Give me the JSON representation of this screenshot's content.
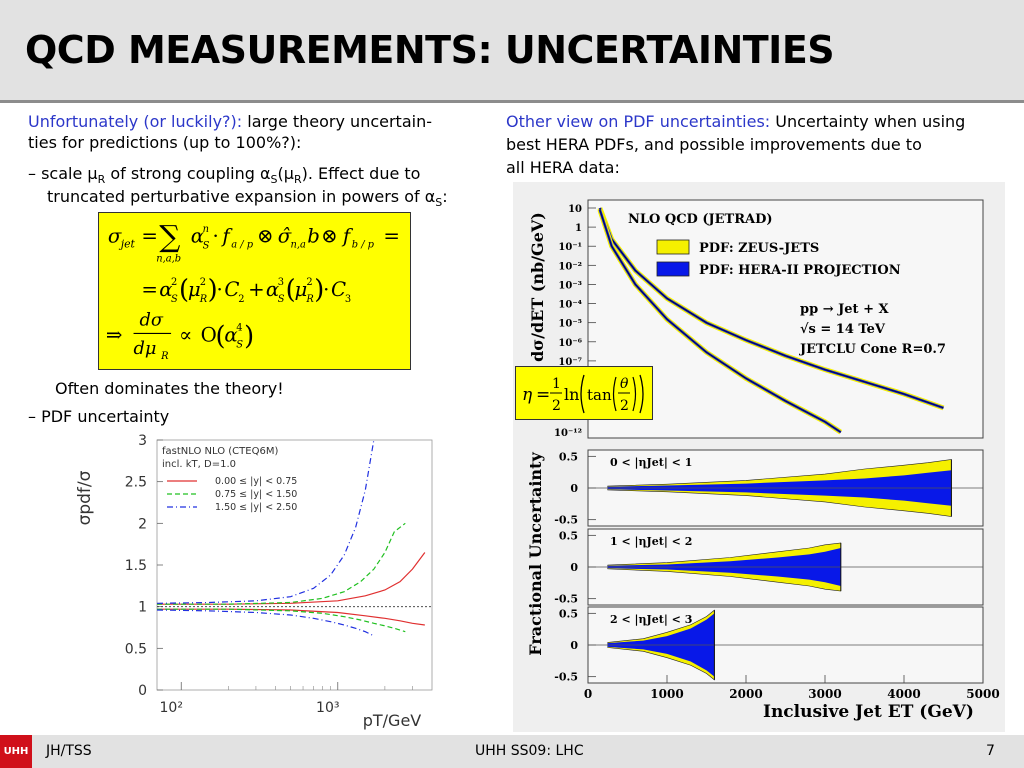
{
  "slide": {
    "title": "QCD MEASUREMENTS: UNCERTAINTIES",
    "left": {
      "intro_highlight": "Unfortunately (or luckily?):",
      "intro_rest": " large theory uncertain-",
      "intro_line2": "ties for predictions (up to 100%?):",
      "scale_a": "– scale μ",
      "scale_sub1": "R",
      "scale_b": " of strong coupling α",
      "scale_sub2": "S",
      "scale_c": "(μ",
      "scale_sub3": "R",
      "scale_d": "). Effect due to",
      "trunc_a": "truncated perturbative expansion in powers of α",
      "trunc_sub": "S",
      "trunc_b": ":",
      "dominates": "Often dominates the theory!",
      "pdf_unc": "– PDF uncertainty"
    },
    "right": {
      "intro_highlight": "Other view on PDF uncertainties:",
      "intro_rest": " Uncertainty when using",
      "line2": "best HERA PDFs, and possible improvements due to",
      "line3": "all HERA data:"
    },
    "footer": {
      "logo": "UHH",
      "left": "JH/TSS",
      "center": "UHH SS09: LHC",
      "page": "7"
    }
  },
  "formula": {
    "sigma": "σ",
    "jet": "jet",
    "eq": "=",
    "sum": "∑",
    "sum_sub": "n,a,b",
    "alpha": "α",
    "n": "n",
    "S": "S",
    "dot": "·",
    "f": "f",
    "a_p": "a / p",
    "otimes": "⊗",
    "sigma_hat": "σ̂",
    "nab": "n,a",
    "b": "b",
    "b_p": "b / p",
    "two": "2",
    "three": "3",
    "mu": "μ",
    "R": "R",
    "C2": "C",
    "plus": "+",
    "implies": "⇒",
    "d_sigma": "dσ",
    "d_mu": "dμ",
    "propto": "∝",
    "O": "O",
    "four": "4",
    "lparen": "(",
    "rparen": ")"
  },
  "eta_formula": {
    "eta": "η",
    "eq": "=",
    "one": "1",
    "two": "2",
    "ln": "ln",
    "tan": "tan",
    "theta": "θ"
  },
  "chart_data": [
    {
      "type": "line",
      "ylabel": "σpdf/σ",
      "xlabel": "pT/GeV",
      "xscale": "log",
      "xlim": [
        70,
        4000
      ],
      "ylim": [
        0,
        3
      ],
      "x_ticks": [
        "10²",
        "10³"
      ],
      "y_ticks": [
        "0",
        "0.5",
        "1",
        "1.5",
        "2",
        "2.5",
        "3"
      ],
      "annotation_lines": [
        "fastNLO NLO (CTEQ6M)",
        "incl. kT, D=1.0"
      ],
      "legend_position": "top-left",
      "reference_line": 1,
      "series": [
        {
          "name": "0.00 ≤ |y| < 0.75",
          "color": "#e03030",
          "style": "solid",
          "x": [
            70,
            200,
            500,
            1000,
            1500,
            2000,
            2500,
            3000,
            3600
          ],
          "upper": [
            1.03,
            1.03,
            1.04,
            1.07,
            1.13,
            1.2,
            1.3,
            1.45,
            1.65
          ],
          "lower": [
            0.97,
            0.97,
            0.96,
            0.93,
            0.89,
            0.86,
            0.83,
            0.8,
            0.78
          ]
        },
        {
          "name": "0.75 ≤ |y| < 1.50",
          "color": "#20c020",
          "style": "dashed",
          "x": [
            70,
            200,
            500,
            800,
            1100,
            1400,
            1700,
            2000,
            2300,
            2700
          ],
          "upper": [
            1.03,
            1.03,
            1.05,
            1.1,
            1.18,
            1.3,
            1.45,
            1.65,
            1.9,
            2.0
          ],
          "lower": [
            0.97,
            0.97,
            0.95,
            0.92,
            0.88,
            0.84,
            0.8,
            0.77,
            0.74,
            0.7
          ]
        },
        {
          "name": "1.50 ≤ |y| < 2.50",
          "color": "#2030e0",
          "style": "dashdot",
          "x": [
            70,
            150,
            300,
            500,
            700,
            900,
            1100,
            1300,
            1500,
            1700
          ],
          "upper": [
            1.04,
            1.05,
            1.07,
            1.12,
            1.22,
            1.38,
            1.62,
            1.95,
            2.4,
            3.0
          ],
          "lower": [
            0.96,
            0.95,
            0.93,
            0.9,
            0.86,
            0.82,
            0.78,
            0.74,
            0.7,
            0.65
          ]
        }
      ]
    },
    {
      "type": "line",
      "title": "NLO QCD (JETRAD)",
      "ylabel": "dσ/dET (nb/GeV)",
      "xscale": "linear",
      "yscale": "log",
      "xlim": [
        0,
        5000
      ],
      "ylim_exp": [
        -12,
        1
      ],
      "y_ticks": [
        "10",
        "1",
        "10⁻¹",
        "10⁻²",
        "10⁻³",
        "10⁻⁴",
        "10⁻⁵",
        "10⁻⁶",
        "10⁻⁷",
        "10⁻¹²"
      ],
      "legend": [
        {
          "name": "PDF: ZEUS-JETS",
          "color": "#f5f000"
        },
        {
          "name": "PDF: HERA-II PROJECTION",
          "color": "#0818e8"
        }
      ],
      "annotation_lines": [
        "pp → Jet + X",
        "√s = 14 TeV",
        "JETCLU Cone R=0.7"
      ],
      "series": [
        {
          "name": "curve-upper",
          "x": [
            150,
            300,
            600,
            1000,
            1500,
            2000,
            2500,
            3000,
            3500,
            4000,
            4500
          ],
          "y_exp": [
            1,
            -0.8,
            -2.6,
            -4.2,
            -5.6,
            -6.6,
            -7.5,
            -8.3,
            -9.0,
            -9.7,
            -10.5
          ]
        },
        {
          "name": "curve-lower",
          "x": [
            150,
            300,
            600,
            1000,
            1500,
            2000,
            2500,
            3000,
            3200
          ],
          "y_exp": [
            0.9,
            -1.2,
            -3.4,
            -5.4,
            -7.3,
            -8.8,
            -10.1,
            -11.3,
            -11.9
          ]
        }
      ]
    },
    {
      "type": "area",
      "ylabel": "Fractional Uncertainty",
      "xlabel": "Inclusive Jet ET (GeV)",
      "x_ticks": [
        "0",
        "1000",
        "2000",
        "3000",
        "4000",
        "5000"
      ],
      "xlim": [
        0,
        5000
      ],
      "y_ticks": [
        "0.5",
        "0",
        "-0.5"
      ],
      "ylim": [
        -0.6,
        0.6
      ],
      "panels": [
        {
          "label": "0 < |ηJet| < 1",
          "xmax": 4600,
          "x": [
            250,
            1000,
            2000,
            3000,
            3500,
            4000,
            4300,
            4600
          ],
          "outer": [
            0.03,
            0.06,
            0.12,
            0.22,
            0.3,
            0.36,
            0.4,
            0.45
          ],
          "inner": [
            0.02,
            0.04,
            0.07,
            0.12,
            0.15,
            0.2,
            0.24,
            0.28
          ]
        },
        {
          "label": "1 < |ηJet| < 2",
          "xmax": 3200,
          "x": [
            250,
            1000,
            1800,
            2400,
            2800,
            3000,
            3200
          ],
          "outer": [
            0.03,
            0.07,
            0.15,
            0.24,
            0.3,
            0.35,
            0.38
          ],
          "inner": [
            0.02,
            0.04,
            0.09,
            0.15,
            0.2,
            0.24,
            0.3
          ]
        },
        {
          "label": "2 < |ηJet| < 3",
          "xmax": 1600,
          "x": [
            250,
            700,
            1000,
            1300,
            1500,
            1600
          ],
          "outer": [
            0.04,
            0.1,
            0.2,
            0.32,
            0.45,
            0.55
          ],
          "inner": [
            0.03,
            0.07,
            0.14,
            0.26,
            0.4,
            0.5
          ]
        }
      ]
    }
  ]
}
